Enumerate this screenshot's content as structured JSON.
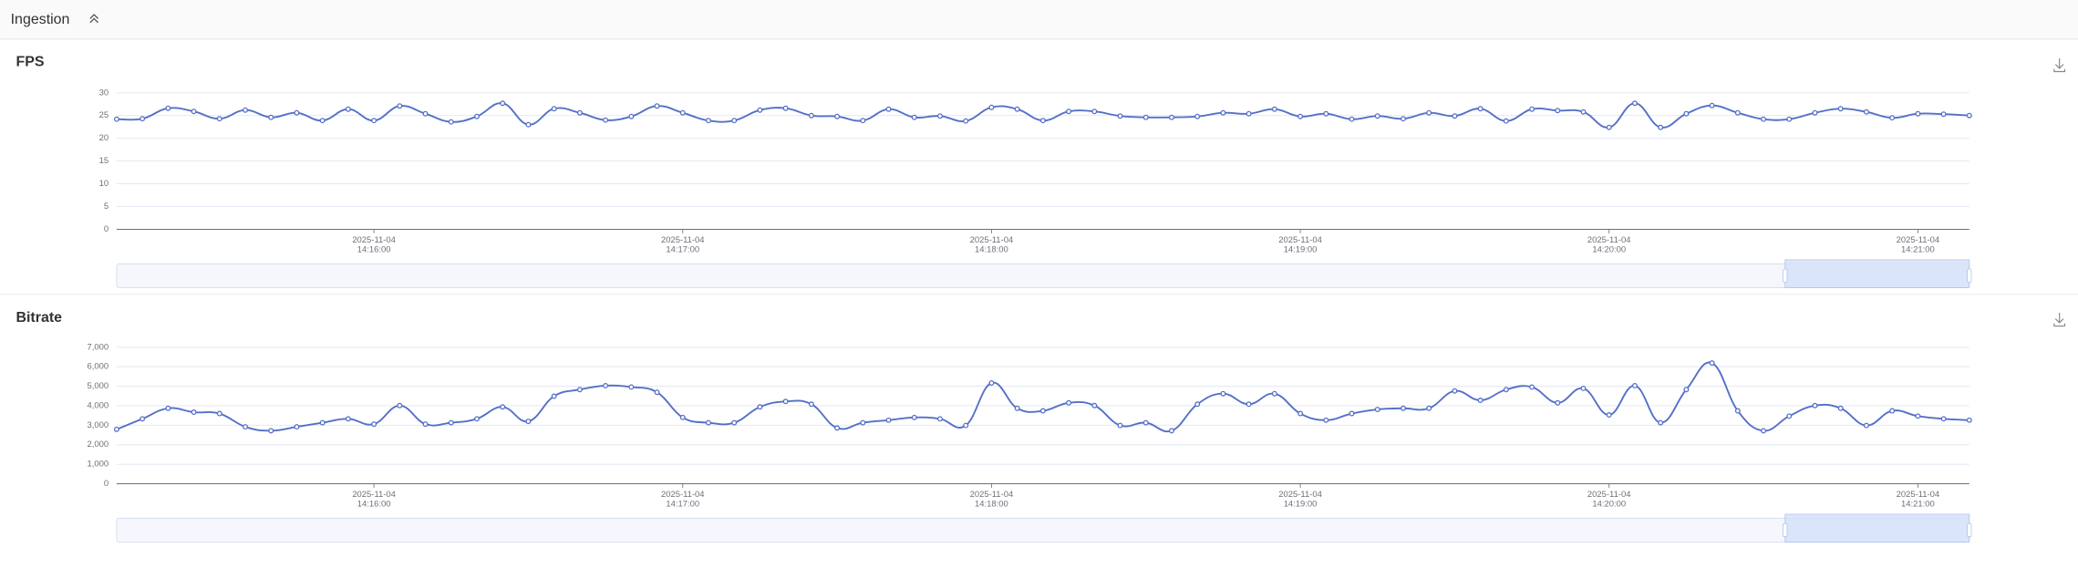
{
  "header": {
    "title": "Ingestion"
  },
  "chart_data": [
    {
      "type": "line",
      "title": "FPS",
      "x": [
        "2025-11-04 14:15:10",
        "2025-11-04 14:15:15",
        "2025-11-04 14:15:20",
        "2025-11-04 14:15:25",
        "2025-11-04 14:15:30",
        "2025-11-04 14:15:35",
        "2025-11-04 14:15:40",
        "2025-11-04 14:15:45",
        "2025-11-04 14:15:50",
        "2025-11-04 14:15:55",
        "2025-11-04 14:16:00",
        "2025-11-04 14:16:05",
        "2025-11-04 14:16:10",
        "2025-11-04 14:16:15",
        "2025-11-04 14:16:20",
        "2025-11-04 14:16:25",
        "2025-11-04 14:16:30",
        "2025-11-04 14:16:35",
        "2025-11-04 14:16:40",
        "2025-11-04 14:16:45",
        "2025-11-04 14:16:50",
        "2025-11-04 14:16:55",
        "2025-11-04 14:17:00",
        "2025-11-04 14:17:05",
        "2025-11-04 14:17:10",
        "2025-11-04 14:17:15",
        "2025-11-04 14:17:20",
        "2025-11-04 14:17:25",
        "2025-11-04 14:17:30",
        "2025-11-04 14:17:35",
        "2025-11-04 14:17:40",
        "2025-11-04 14:17:45",
        "2025-11-04 14:17:50",
        "2025-11-04 14:17:55",
        "2025-11-04 14:18:00",
        "2025-11-04 14:18:05",
        "2025-11-04 14:18:10",
        "2025-11-04 14:18:15",
        "2025-11-04 14:18:20",
        "2025-11-04 14:18:25",
        "2025-11-04 14:18:30",
        "2025-11-04 14:18:35",
        "2025-11-04 14:18:40",
        "2025-11-04 14:18:45",
        "2025-11-04 14:18:50",
        "2025-11-04 14:18:55",
        "2025-11-04 14:19:00",
        "2025-11-04 14:19:05",
        "2025-11-04 14:19:10",
        "2025-11-04 14:19:15",
        "2025-11-04 14:19:20",
        "2025-11-04 14:19:25",
        "2025-11-04 14:19:30",
        "2025-11-04 14:19:35",
        "2025-11-04 14:19:40",
        "2025-11-04 14:19:45",
        "2025-11-04 14:19:50",
        "2025-11-04 14:19:55",
        "2025-11-04 14:20:00",
        "2025-11-04 14:20:05",
        "2025-11-04 14:20:10",
        "2025-11-04 14:20:15",
        "2025-11-04 14:20:20",
        "2025-11-04 14:20:25",
        "2025-11-04 14:20:30",
        "2025-11-04 14:20:35",
        "2025-11-04 14:20:40",
        "2025-11-04 14:20:45",
        "2025-11-04 14:20:50",
        "2025-11-04 14:20:55",
        "2025-11-04 14:21:00",
        "2025-11-04 14:21:05",
        "2025-11-04 14:21:10"
      ],
      "xlim": [
        "2025-11-04 14:15:10",
        "2025-11-04 14:21:10"
      ],
      "xticks": [
        "2025-11-04 14:16:00",
        "2025-11-04 14:17:00",
        "2025-11-04 14:18:00",
        "2025-11-04 14:19:00",
        "2025-11-04 14:20:00",
        "2025-11-04 14:21:00"
      ],
      "ylim": [
        0,
        30
      ],
      "yticks": [
        0,
        5,
        10,
        15,
        20,
        25,
        30
      ],
      "grid": true,
      "series": [
        {
          "color": "#5470c6",
          "values": [
            24.2,
            24.3,
            26.6,
            25.9,
            24.3,
            26.2,
            24.6,
            25.6,
            23.9,
            26.4,
            23.9,
            27.1,
            25.4,
            23.6,
            24.8,
            27.7,
            23.0,
            26.5,
            25.6,
            24.0,
            24.8,
            27.1,
            25.6,
            23.9,
            23.9,
            26.2,
            26.6,
            25.0,
            24.8,
            23.9,
            26.4,
            24.6,
            24.9,
            23.8,
            26.8,
            26.4,
            23.9,
            25.9,
            25.9,
            24.9,
            24.6,
            24.6,
            24.8,
            25.6,
            25.4,
            26.4,
            24.8,
            25.4,
            24.2,
            24.9,
            24.3,
            25.6,
            24.9,
            26.5,
            23.8,
            26.4,
            26.1,
            25.8,
            22.4,
            27.7,
            22.4,
            25.4,
            27.2,
            25.6,
            24.2,
            24.2,
            25.6,
            26.5,
            25.8,
            24.5,
            25.4,
            25.3,
            25.0
          ]
        }
      ]
    },
    {
      "type": "line",
      "title": "Bitrate",
      "x": [
        "2025-11-04 14:15:10",
        "2025-11-04 14:15:15",
        "2025-11-04 14:15:20",
        "2025-11-04 14:15:25",
        "2025-11-04 14:15:30",
        "2025-11-04 14:15:35",
        "2025-11-04 14:15:40",
        "2025-11-04 14:15:45",
        "2025-11-04 14:15:50",
        "2025-11-04 14:15:55",
        "2025-11-04 14:16:00",
        "2025-11-04 14:16:05",
        "2025-11-04 14:16:10",
        "2025-11-04 14:16:15",
        "2025-11-04 14:16:20",
        "2025-11-04 14:16:25",
        "2025-11-04 14:16:30",
        "2025-11-04 14:16:35",
        "2025-11-04 14:16:40",
        "2025-11-04 14:16:45",
        "2025-11-04 14:16:50",
        "2025-11-04 14:16:55",
        "2025-11-04 14:17:00",
        "2025-11-04 14:17:05",
        "2025-11-04 14:17:10",
        "2025-11-04 14:17:15",
        "2025-11-04 14:17:20",
        "2025-11-04 14:17:25",
        "2025-11-04 14:17:30",
        "2025-11-04 14:17:35",
        "2025-11-04 14:17:40",
        "2025-11-04 14:17:45",
        "2025-11-04 14:17:50",
        "2025-11-04 14:17:55",
        "2025-11-04 14:18:00",
        "2025-11-04 14:18:05",
        "2025-11-04 14:18:10",
        "2025-11-04 14:18:15",
        "2025-11-04 14:18:20",
        "2025-11-04 14:18:25",
        "2025-11-04 14:18:30",
        "2025-11-04 14:18:35",
        "2025-11-04 14:18:40",
        "2025-11-04 14:18:45",
        "2025-11-04 14:18:50",
        "2025-11-04 14:18:55",
        "2025-11-04 14:19:00",
        "2025-11-04 14:19:05",
        "2025-11-04 14:19:10",
        "2025-11-04 14:19:15",
        "2025-11-04 14:19:20",
        "2025-11-04 14:19:25",
        "2025-11-04 14:19:30",
        "2025-11-04 14:19:35",
        "2025-11-04 14:19:40",
        "2025-11-04 14:19:45",
        "2025-11-04 14:19:50",
        "2025-11-04 14:19:55",
        "2025-11-04 14:20:00",
        "2025-11-04 14:20:05",
        "2025-11-04 14:20:10",
        "2025-11-04 14:20:15",
        "2025-11-04 14:20:20",
        "2025-11-04 14:20:25",
        "2025-11-04 14:20:30",
        "2025-11-04 14:20:35",
        "2025-11-04 14:20:40",
        "2025-11-04 14:20:45",
        "2025-11-04 14:20:50",
        "2025-11-04 14:20:55",
        "2025-11-04 14:21:00",
        "2025-11-04 14:21:05",
        "2025-11-04 14:21:10"
      ],
      "xlim": [
        "2025-11-04 14:15:10",
        "2025-11-04 14:21:10"
      ],
      "xticks": [
        "2025-11-04 14:16:00",
        "2025-11-04 14:17:00",
        "2025-11-04 14:18:00",
        "2025-11-04 14:19:00",
        "2025-11-04 14:20:00",
        "2025-11-04 14:21:00"
      ],
      "ylim": [
        0,
        7000
      ],
      "yticks": [
        0,
        {
          "value": 1000,
          "label": "1,000"
        },
        {
          "value": 2000,
          "label": "2,000"
        },
        {
          "value": 3000,
          "label": "3,000"
        },
        {
          "value": 4000,
          "label": "4,000"
        },
        {
          "value": 5000,
          "label": "5,000"
        },
        {
          "value": 6000,
          "label": "6,000"
        },
        {
          "value": 7000,
          "label": "7,000"
        }
      ],
      "grid": true,
      "series": [
        {
          "color": "#5470c6",
          "values": [
            2790,
            3330,
            3870,
            3670,
            3600,
            2920,
            2720,
            2920,
            3130,
            3330,
            3060,
            4010,
            3060,
            3130,
            3330,
            3940,
            3200,
            4490,
            4830,
            5030,
            4960,
            4690,
            3400,
            3130,
            3130,
            3940,
            4220,
            4080,
            2860,
            3130,
            3260,
            3400,
            3330,
            2990,
            5170,
            3870,
            3740,
            4150,
            4010,
            2990,
            3130,
            2720,
            4080,
            4620,
            4080,
            4620,
            3600,
            3260,
            3600,
            3810,
            3870,
            3870,
            4760,
            4280,
            4830,
            4960,
            4150,
            4890,
            3530,
            5030,
            3130,
            4830,
            6190,
            3740,
            2720,
            3470,
            4010,
            3870,
            2990,
            3740,
            3470,
            3330,
            3260
          ]
        }
      ]
    }
  ]
}
